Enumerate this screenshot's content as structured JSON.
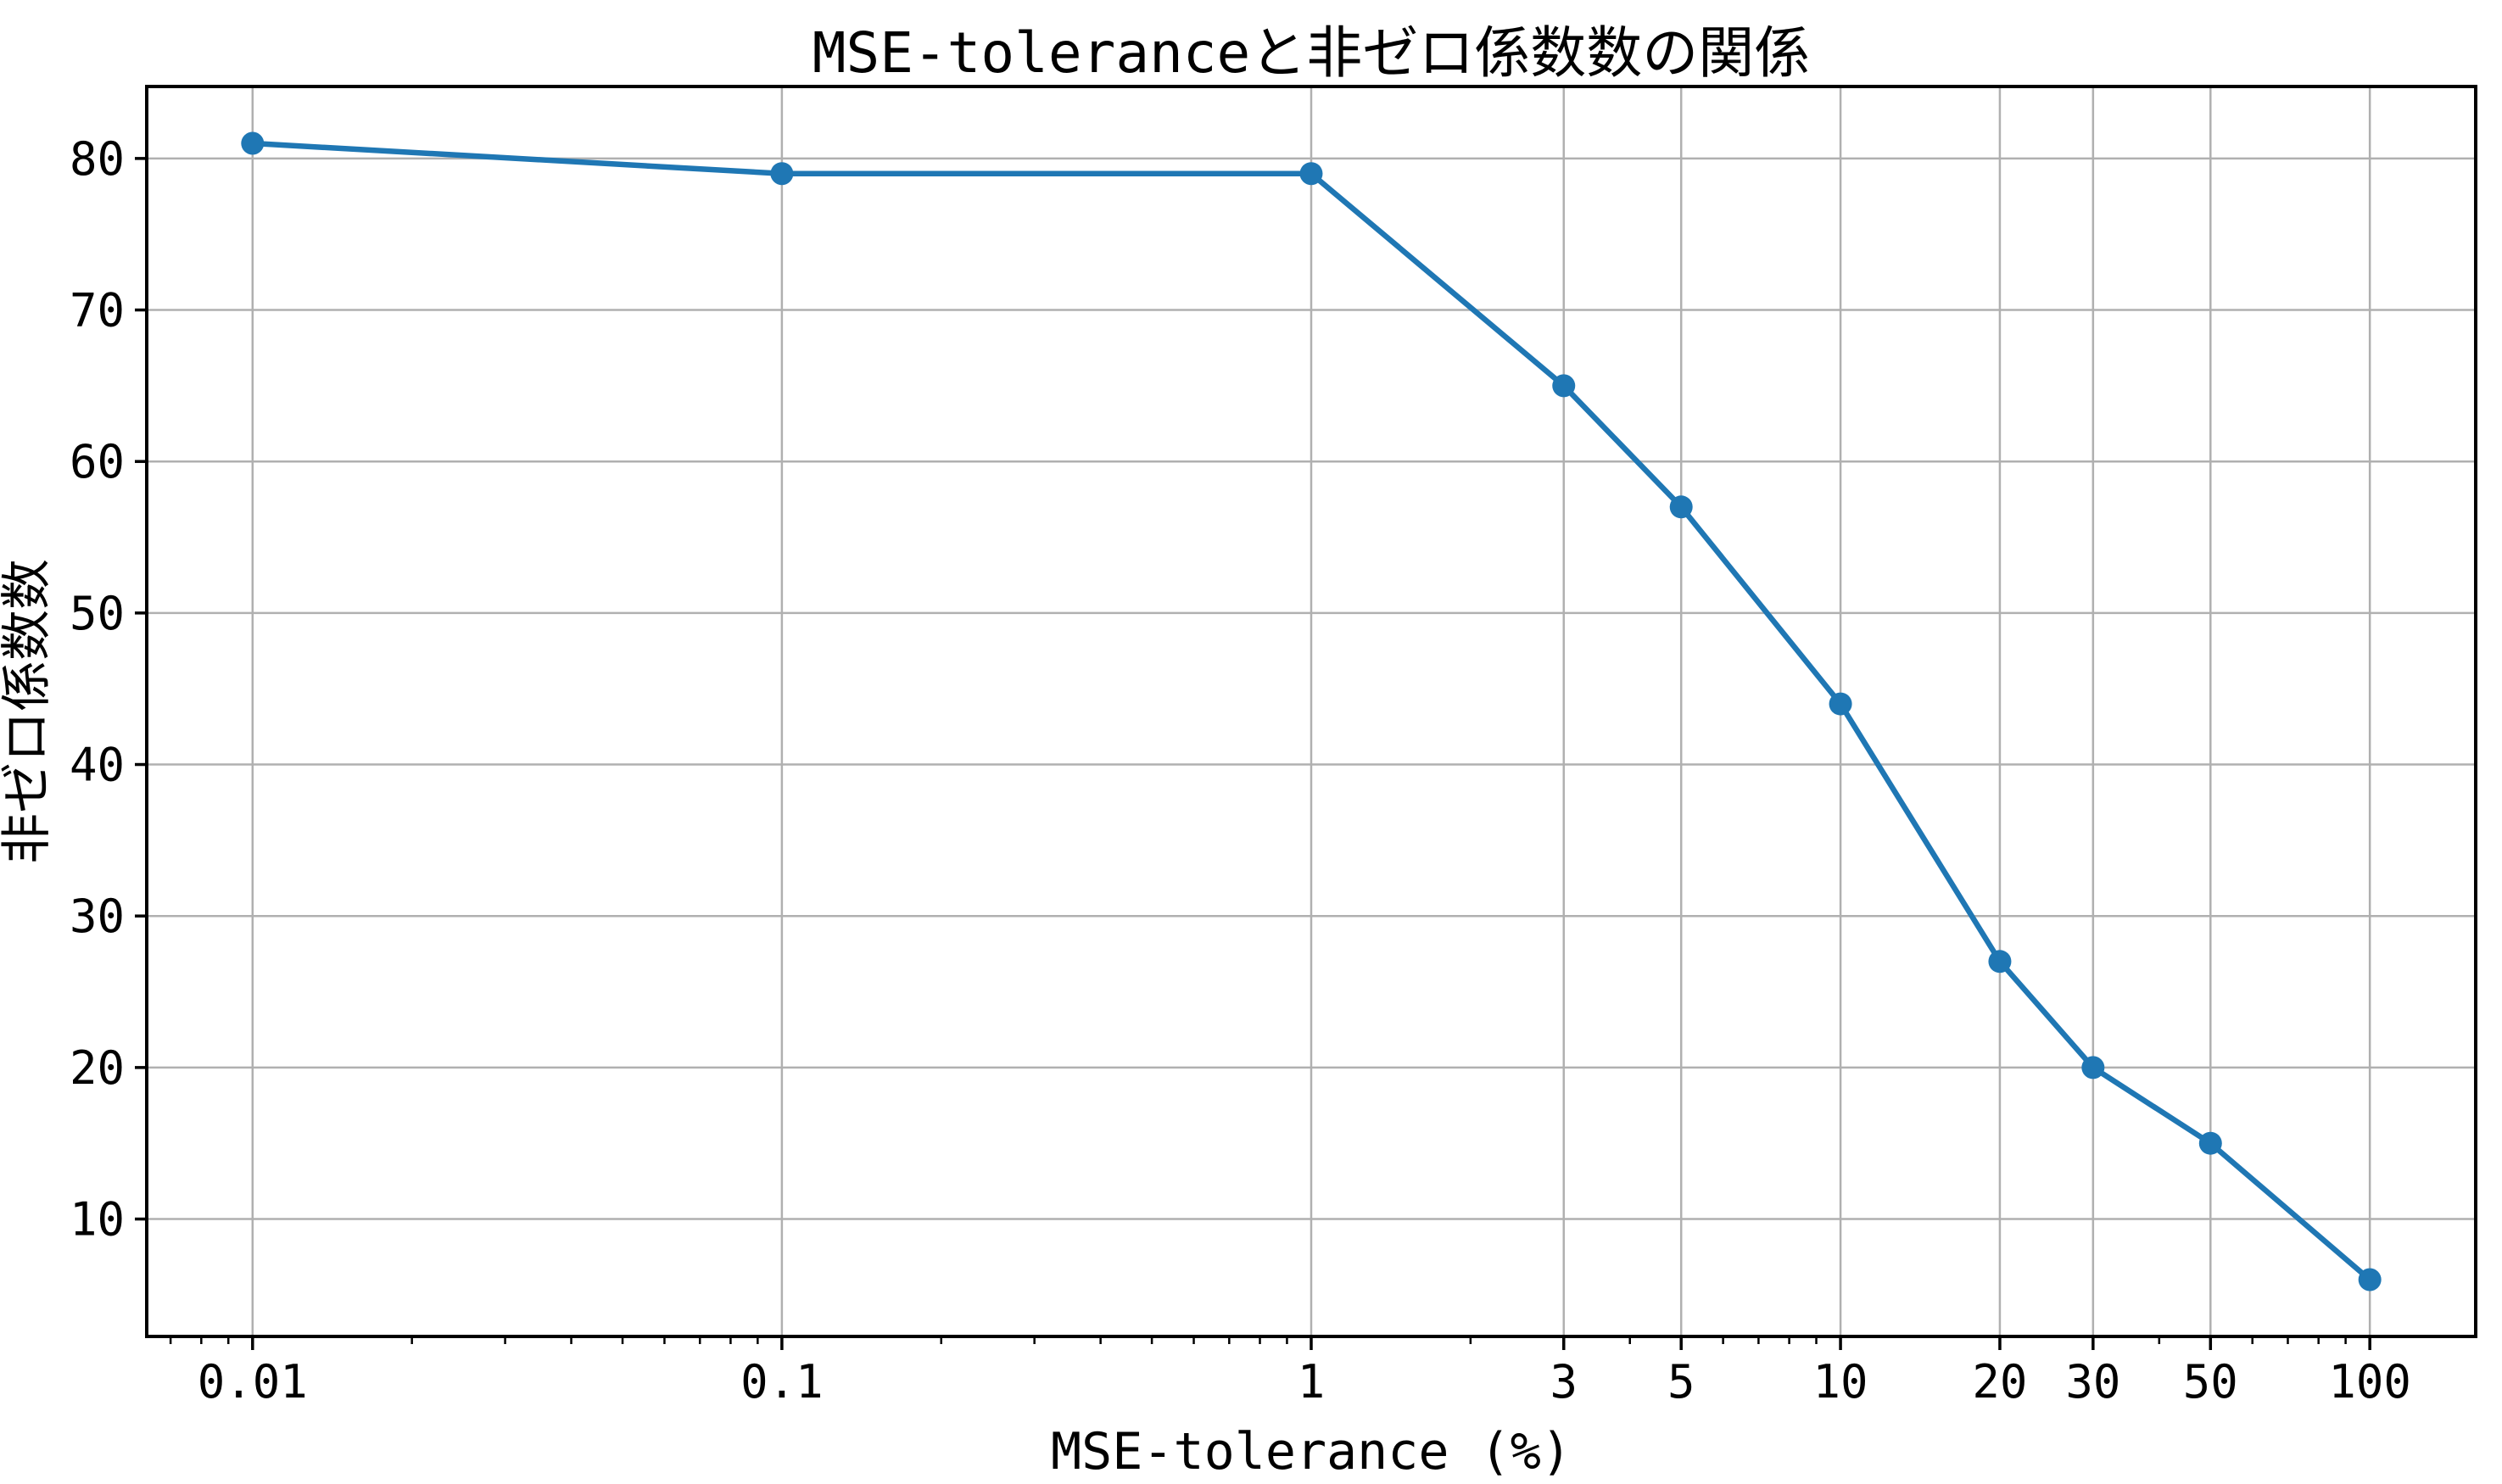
{
  "chart_data": {
    "type": "line",
    "title": "MSE-toleranceと非ゼロ係数数の関係",
    "xlabel": "MSE-tolerance (%)",
    "ylabel": "非ゼロ係数数",
    "x_scale": "log",
    "y_scale": "linear",
    "x": [
      0.01,
      0.1,
      1,
      3,
      5,
      10,
      20,
      30,
      50,
      100
    ],
    "y": [
      81,
      79,
      79,
      65,
      57,
      44,
      27,
      20,
      15,
      6
    ],
    "x_tick_labels": [
      "0.01",
      "0.1",
      "1",
      "3",
      "5",
      "10",
      "20",
      "30",
      "50",
      "100"
    ],
    "y_ticks": [
      10,
      20,
      30,
      40,
      50,
      60,
      70,
      80
    ],
    "xlim": [
      0.00631,
      158.5
    ],
    "ylim": [
      2.25,
      84.75
    ],
    "grid": true,
    "legend": "none",
    "line_color": "#1f77b4",
    "marker": "circle",
    "grid_color": "#b0b0b0",
    "spine_color": "#000000",
    "tick_color": "#000000",
    "background": "#ffffff"
  }
}
